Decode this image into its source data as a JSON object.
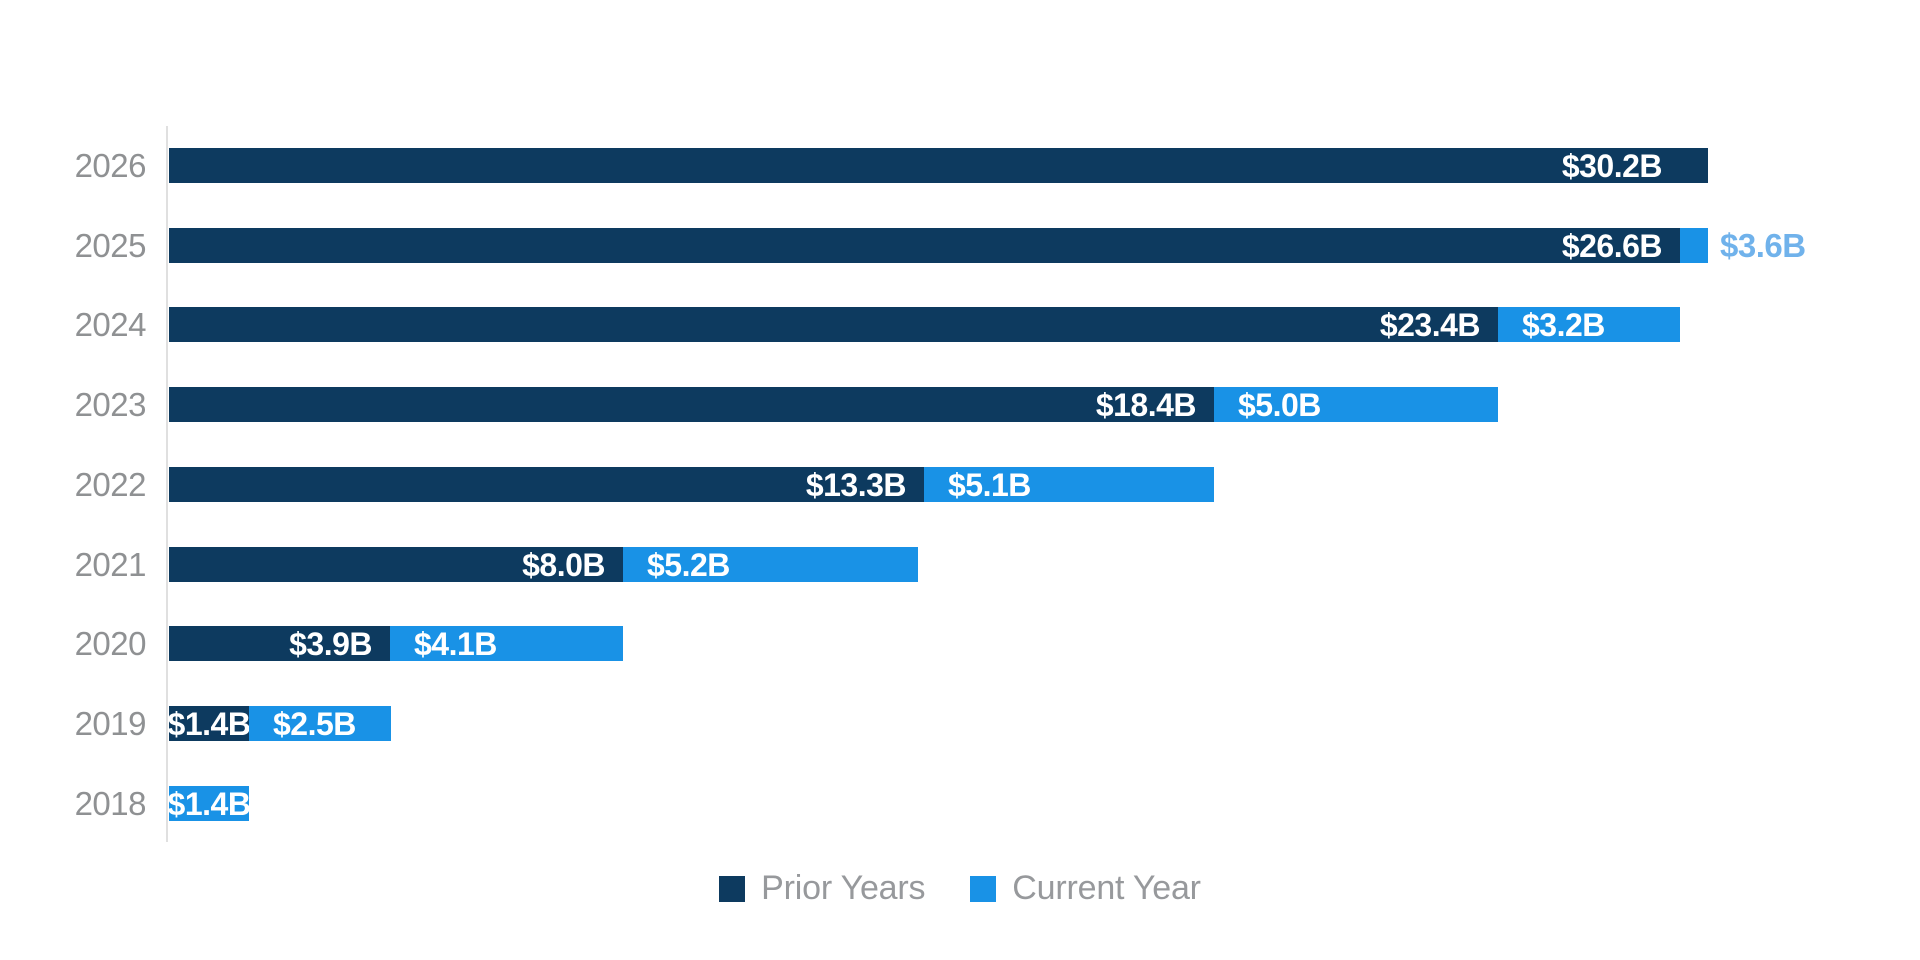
{
  "chart_data": {
    "type": "bar",
    "orientation": "horizontal",
    "stacked": true,
    "title": "",
    "categories": [
      "2026",
      "2025",
      "2024",
      "2023",
      "2022",
      "2021",
      "2020",
      "2019",
      "2018"
    ],
    "series": [
      {
        "name": "Prior Years",
        "color": "#0d3a5f",
        "values": [
          30.2,
          26.6,
          23.4,
          18.4,
          13.3,
          8.0,
          3.9,
          1.4,
          null
        ]
      },
      {
        "name": "Current Year",
        "color": "#1992e6",
        "values": [
          null,
          3.6,
          3.2,
          5.0,
          5.1,
          5.2,
          4.1,
          2.5,
          1.4
        ]
      }
    ],
    "bar_labels": [
      {
        "prior": "$30.2B",
        "current": null
      },
      {
        "prior": "$26.6B",
        "current": "$3.6B"
      },
      {
        "prior": "$23.4B",
        "current": "$3.2B"
      },
      {
        "prior": "$18.4B",
        "current": "$5.0B"
      },
      {
        "prior": "$13.3B",
        "current": "$5.1B"
      },
      {
        "prior": "$8.0B",
        "current": "$5.2B"
      },
      {
        "prior": "$3.9B",
        "current": "$4.1B"
      },
      {
        "prior": "$1.4B",
        "current": "$2.5B"
      },
      {
        "prior": null,
        "current": "$1.4B"
      }
    ],
    "unit": "USD billions",
    "xlim_billions": [
      0,
      27.1
    ],
    "grid": false,
    "legend_position": "bottom",
    "colors": {
      "prior_years": "#0d3a5f",
      "current_year": "#1992e6",
      "outside_label_text": "#70b2eb",
      "bar_label_text": "#ffffff",
      "axis_label_text": "#8f9193",
      "legend_text": "#97999c",
      "axis_line": "#e0e0e0",
      "background": "#ffffff"
    }
  }
}
